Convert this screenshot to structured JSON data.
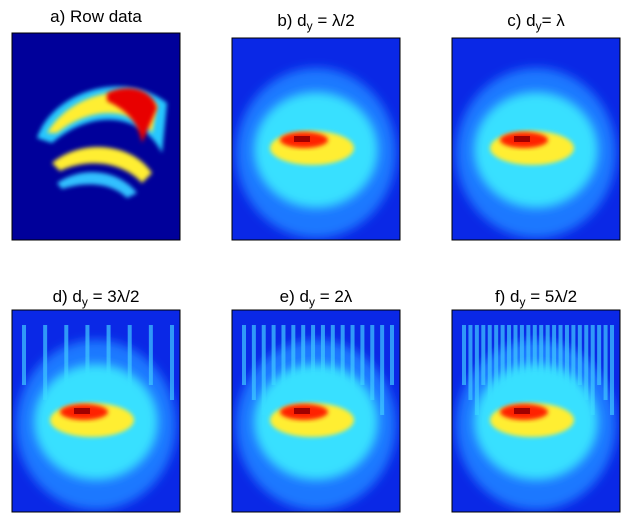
{
  "panels": [
    {
      "prefix": "a) Row data"
    },
    {
      "prefix": "b) d",
      "sub": "y",
      "suffix": " = λ/2"
    },
    {
      "prefix": "c) d",
      "sub": "y",
      "suffix": "= λ"
    },
    {
      "prefix": "d) d",
      "sub": "y",
      "suffix": " = 3λ/2"
    },
    {
      "prefix": "e) d",
      "sub": "y",
      "suffix": " = 2λ"
    },
    {
      "prefix": "f) d",
      "sub": "y",
      "suffix": " = 5λ/2"
    }
  ]
}
